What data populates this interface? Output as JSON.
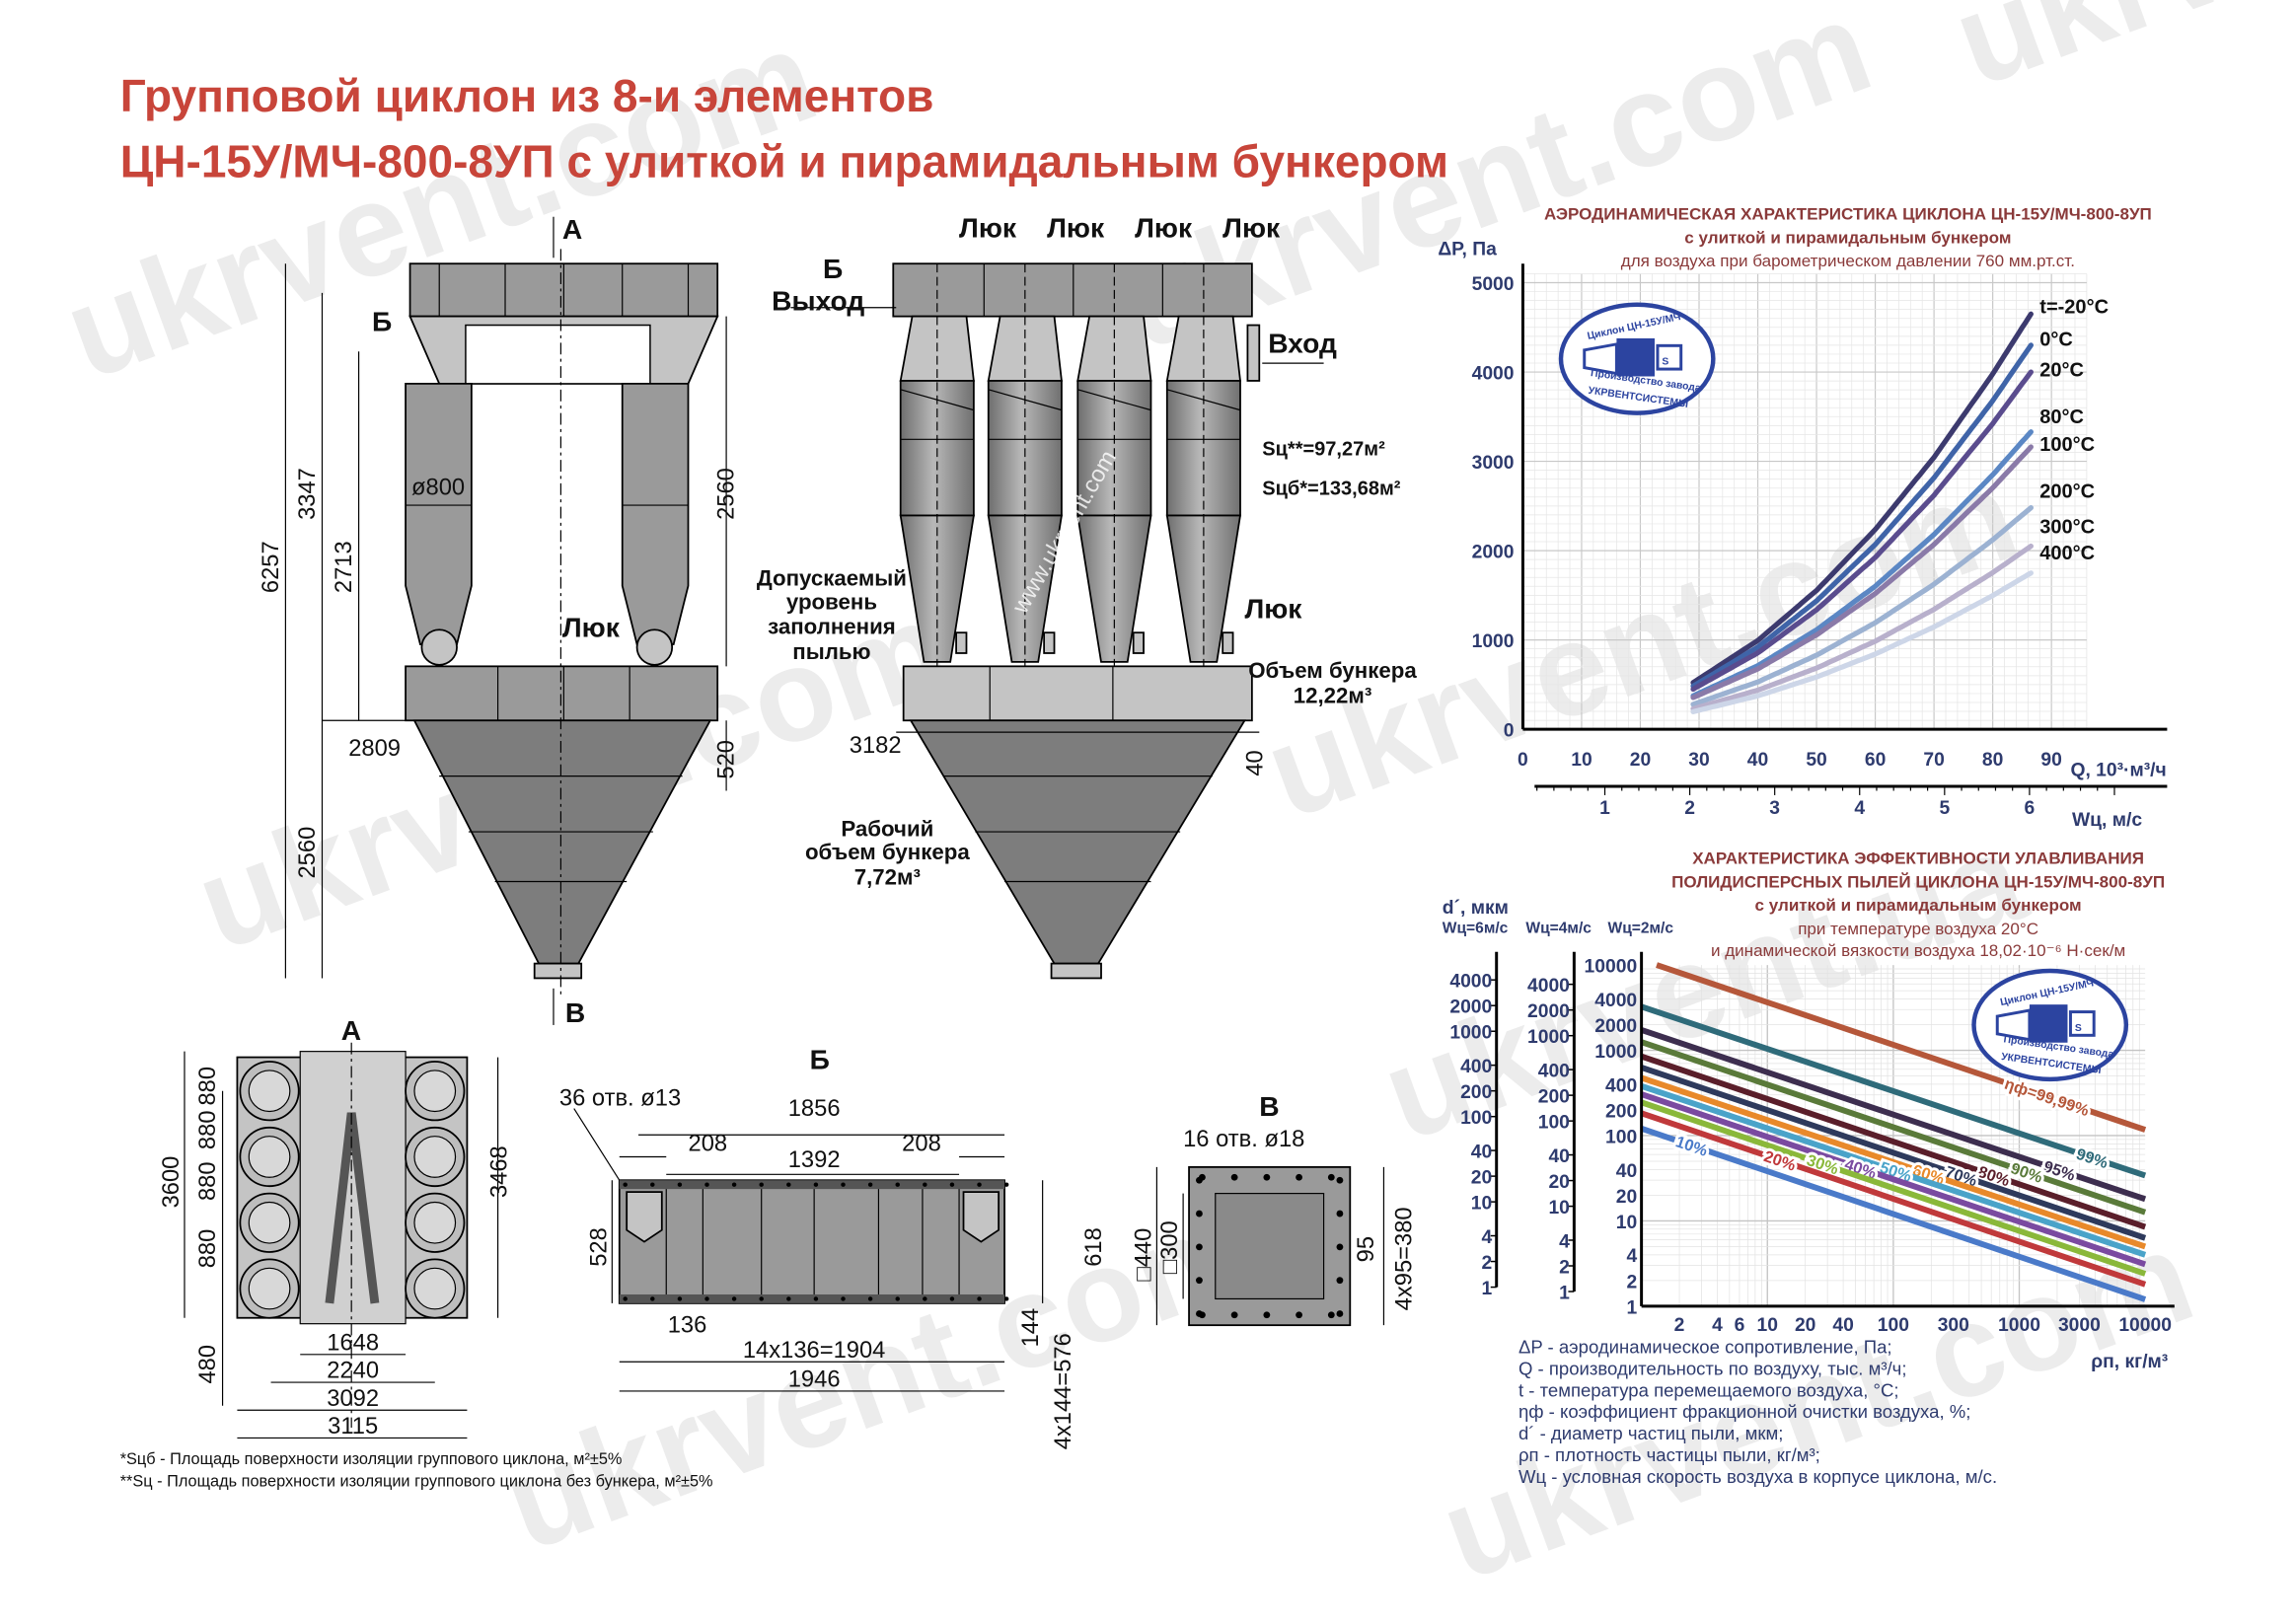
{
  "title": {
    "line1": "Групповой циклон из 8-и элементов",
    "line2": "ЦН-15У/МЧ-800-8УП с улиткой и пирамидальным бункером"
  },
  "watermark": "ukrvent.com",
  "watermark2": "ukrvent.ua",
  "drawing_watermark": "www.ukrvent.com",
  "logo": {
    "top": "Циклон ЦН-15У/МЧ",
    "middle": "Производство завода",
    "bottom": "УКРВЕНТСИСТЕМЫ",
    "letter": "S"
  },
  "front_view": {
    "view_a": "А",
    "view_b": "Б",
    "view_v": "В",
    "diameter": "ø800",
    "hatch": "Люк",
    "dims": {
      "total_height": "6257",
      "upper_height": "3347",
      "mid_height": "2713",
      "cyclone_height": "2560",
      "bunker_height": "2560",
      "bunker_width": "2809",
      "bunker_top": "520"
    }
  },
  "side_view": {
    "hatches": [
      "Люк",
      "Люк",
      "Люк",
      "Люк"
    ],
    "view_b": "Б",
    "outlet": "Выход",
    "inlet": "Вход",
    "area_no_bunker": "Sц**=97,27м²",
    "area_with_bunker": "Sцб*=133,68м²",
    "allowed_level": [
      "Допускаемый",
      "уровень",
      "заполнения",
      "пылью"
    ],
    "lower_hatch": "Люк",
    "bunker_volume": [
      "Объем бункера",
      "12,22м³"
    ],
    "working_volume": [
      "Рабочий",
      "объем бункера",
      "7,72м³"
    ],
    "dims": {
      "width": "3182",
      "gap": "40"
    }
  },
  "detail_a": {
    "label": "А",
    "dims": {
      "height": "3600",
      "pitch": [
        "880",
        "880",
        "880",
        "880"
      ],
      "inner_height": "3468",
      "offset": "480",
      "w1": "1648",
      "w2": "2240",
      "w3": "3092",
      "w4": "3115"
    }
  },
  "detail_b": {
    "label": "Б",
    "holes": "36 отв. ø13",
    "dims": {
      "total": "1856",
      "side_left": "208",
      "side_right": "208",
      "middle": "1392",
      "height": "528",
      "outer_height": "618",
      "pitch": "136",
      "pitch_total": "14х136=1904",
      "overall": "1946",
      "vpitch": "144",
      "vpitch_total": "4х144=576"
    }
  },
  "detail_v": {
    "label": "В",
    "holes": "16 отв. ø18",
    "dims": {
      "outer": "□440",
      "inner": "□300",
      "pitch": "95",
      "pitch_total": "4х95=380"
    }
  },
  "footnotes": [
    "*Sцб - Площадь поверхности изоляции группового циклона, м²±5%",
    "**Sц - Площадь поверхности изоляции группового циклона без бункера, м²±5%"
  ],
  "legend": [
    "ΔP - аэродинамическое сопротивление, Па;",
    "Q - производительность по воздуху, тыс. м³/ч;",
    "t - температура перемещаемого воздуха, °С;",
    "ηф - коэффициент фракционной очистки воздуха, %;",
    "d´ - диаметр частиц пыли, мкм;",
    "ρп - плотность частицы пыли, кг/м³;",
    "Wц - условная скорость воздуха в корпусе циклона, м/с."
  ],
  "chart_data": [
    {
      "type": "line",
      "title": "АЭРОДИНАМИЧЕСКАЯ  ХАРАКТЕРИСТИКА  ЦИКЛОНА ЦН-15У/МЧ-800-8УП",
      "subtitle": "с улиткой и пирамидальным бункером",
      "note": "для воздуха при барометрическом давлении 760 мм.рт.ст.",
      "ylabel": "ΔP, Па",
      "xlabel": "Q, 10³·м³/ч",
      "x2label": "Wц, м/с",
      "xlim": [
        0,
        90
      ],
      "ylim": [
        0,
        5000
      ],
      "x_ticks": [
        "0",
        "10",
        "20",
        "30",
        "40",
        "50",
        "60",
        "70",
        "80",
        "90"
      ],
      "y_ticks": [
        "0",
        "1000",
        "2000",
        "3000",
        "4000",
        "5000"
      ],
      "x2_ticks": [
        "1",
        "2",
        "3",
        "4",
        "5",
        "6"
      ],
      "grid": true,
      "x": [
        29,
        40,
        50,
        60,
        70,
        80,
        86.5
      ],
      "series": [
        {
          "name": "t=-20°C",
          "color": "#3c3a6e",
          "values": [
            523,
            994,
            1554,
            2237,
            3045,
            3978,
            4650
          ]
        },
        {
          "name": "0°C",
          "color": "#3f64a8",
          "values": [
            483,
            920,
            1437,
            2069,
            2816,
            3678,
            4300
          ]
        },
        {
          "name": "20°C",
          "color": "#5a4c8e",
          "values": [
            450,
            855,
            1337,
            1925,
            2620,
            3422,
            4000
          ]
        },
        {
          "name": "80°C",
          "color": "#5b87c4",
          "values": [
            374,
            712,
            1113,
            1602,
            2181,
            2849,
            3330
          ]
        },
        {
          "name": "100°C",
          "color": "#8a7aa8",
          "values": [
            355,
            676,
            1056,
            1520,
            2069,
            2703,
            3160
          ]
        },
        {
          "name": "200°C",
          "color": "#9cb2d2",
          "values": [
            279,
            530,
            829,
            1193,
            1624,
            2121,
            2480
          ]
        },
        {
          "name": "300°C",
          "color": "#b8b0cc",
          "values": [
            230,
            438,
            685,
            986,
            1343,
            1754,
            2050
          ]
        },
        {
          "name": "400°C",
          "color": "#cdd6e8",
          "values": [
            197,
            374,
            585,
            842,
            1146,
            1497,
            1750
          ]
        }
      ]
    },
    {
      "type": "line",
      "title": "ХАРАКТЕРИСТИКА  ЭФФЕКТИВНОСТИ УЛАВЛИВАНИЯ",
      "title2": "ПОЛИДИСПЕРСНЫХ ПЫЛЕЙ ЦИКЛОНА ЦН-15У/МЧ-800-8УП",
      "subtitle": "с улиткой и пирамидальным бункером",
      "note1": "при температуре воздуха 20°С",
      "note2": "и динамической вязкости воздуха  18,02·10⁻⁶ Н·сек/м",
      "ylabel": "d´, мкм",
      "y_axes": [
        "Wц=6м/с",
        "Wц=4м/с",
        "Wц=2м/с"
      ],
      "xlabel": "ρп, кг/м³",
      "xscale": "log",
      "yscale": "log",
      "xlim": [
        1,
        10000
      ],
      "ylim": [
        1,
        10000
      ],
      "x_ticks": [
        "2",
        "4",
        "6",
        "10",
        "20",
        "40",
        "100",
        "300",
        "1000",
        "3000",
        "10000"
      ],
      "y_ticks": [
        "10000",
        "4000",
        "2000",
        "1000",
        "400",
        "200",
        "100",
        "40",
        "20",
        "10",
        "4",
        "2",
        "1"
      ],
      "y_ticks_side": [
        "4000",
        "2000",
        "1000",
        "400",
        "200",
        "100",
        "40",
        "20",
        "10",
        "4",
        "2",
        "1"
      ],
      "grid": true,
      "series": [
        {
          "name": "ηф=99,99%",
          "color": "#b5573a",
          "points": [
            [
              1.32,
              10000
            ],
            [
              10000,
              117
            ]
          ]
        },
        {
          "name": "99%",
          "color": "#2f6b7a",
          "points": [
            [
              1,
              3250
            ],
            [
              10000,
              34
            ]
          ]
        },
        {
          "name": "95%",
          "color": "#3d2e4f",
          "points": [
            [
              1,
              1730
            ],
            [
              10000,
              18
            ]
          ]
        },
        {
          "name": "90%",
          "color": "#5a7a3a",
          "points": [
            [
              1,
              1250
            ],
            [
              10000,
              12.6
            ]
          ]
        },
        {
          "name": "80%",
          "color": "#5a1e2a",
          "points": [
            [
              1,
              850
            ],
            [
              10000,
              8.5
            ]
          ]
        },
        {
          "name": "70%",
          "color": "#2e3a5c",
          "points": [
            [
              1,
              630
            ],
            [
              10000,
              6.3
            ]
          ]
        },
        {
          "name": "60%",
          "color": "#e8892a",
          "points": [
            [
              1,
              475
            ],
            [
              10000,
              5.0
            ]
          ]
        },
        {
          "name": "50%",
          "color": "#4aa3c9",
          "points": [
            [
              1,
              380
            ],
            [
              10000,
              4.0
            ]
          ]
        },
        {
          "name": "40%",
          "color": "#7a4aa0",
          "points": [
            [
              1,
              305
            ],
            [
              10000,
              3.1
            ]
          ]
        },
        {
          "name": "30%",
          "color": "#8ab83a",
          "points": [
            [
              1,
              245
            ],
            [
              10000,
              2.4
            ]
          ]
        },
        {
          "name": "20%",
          "color": "#c0393b",
          "points": [
            [
              1,
              183
            ],
            [
              10000,
              1.8
            ]
          ]
        },
        {
          "name": "10%",
          "color": "#4a7ac9",
          "points": [
            [
              1,
              121
            ],
            [
              10000,
              1.2
            ]
          ]
        }
      ]
    }
  ]
}
